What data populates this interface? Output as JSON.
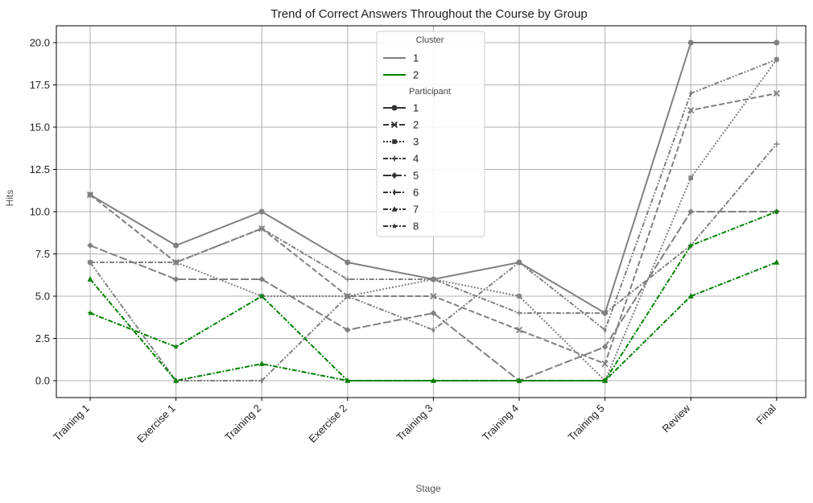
{
  "chart_data": {
    "type": "line",
    "title": "Trend of Correct Answers Throughout the Course by Group",
    "xlabel": "Stage",
    "ylabel": "Hits",
    "categories": [
      "Training 1",
      "Exercise 1",
      "Training 2",
      "Exercise 2",
      "Training 3",
      "Training 4",
      "Training 5",
      "Review",
      "Final"
    ],
    "ylim": [
      -1,
      21
    ],
    "yticks": [
      "0.0",
      "2.5",
      "5.0",
      "7.5",
      "10.0",
      "12.5",
      "15.0",
      "17.5",
      "20.0"
    ],
    "grid": true,
    "legend_position": "top-center",
    "legend": {
      "hue_title": "Cluster",
      "hue_entries": [
        {
          "label": "1",
          "color": "#808080"
        },
        {
          "label": "2",
          "color": "#008000"
        }
      ],
      "style_title": "Participant",
      "style_entries": [
        "1",
        "2",
        "3",
        "4",
        "5",
        "6",
        "7",
        "8"
      ]
    },
    "colors": {
      "cluster_1": "#808080",
      "cluster_2": "#008000",
      "grid": "#b0b0b0"
    },
    "series": [
      {
        "cluster": "1",
        "participant": "1",
        "marker": "circle",
        "dash": "solid",
        "values": [
          11,
          8,
          10,
          7,
          6,
          7,
          4,
          20,
          20
        ]
      },
      {
        "cluster": "1",
        "participant": "2",
        "marker": "x",
        "dash": "dash",
        "values": [
          11,
          7,
          9,
          5,
          5,
          3,
          1,
          16,
          17
        ]
      },
      {
        "cluster": "1",
        "participant": "3",
        "marker": "square",
        "dash": "dot",
        "values": [
          7,
          7,
          5,
          5,
          6,
          5,
          0,
          12,
          19
        ]
      },
      {
        "cluster": "1",
        "participant": "4",
        "marker": "plus",
        "dash": "dashdot",
        "values": [
          7,
          7,
          9,
          6,
          6,
          4,
          4,
          8,
          14
        ]
      },
      {
        "cluster": "1",
        "participant": "5",
        "marker": "diamond",
        "dash": "longdash",
        "values": [
          8,
          6,
          6,
          3,
          4,
          0,
          2,
          10,
          10
        ]
      },
      {
        "cluster": "1",
        "participant": "6",
        "marker": "thin_diamond",
        "dash": "dashdotdot",
        "values": [
          7,
          0,
          0,
          5,
          3,
          7,
          3,
          17,
          19
        ]
      },
      {
        "cluster": "2",
        "participant": "7",
        "marker": "triangle",
        "dash": "dashdot",
        "values": [
          6,
          0,
          1,
          0,
          0,
          0,
          0,
          5,
          7
        ]
      },
      {
        "cluster": "2",
        "participant": "8",
        "marker": "star",
        "dash": "dashdot",
        "values": [
          4,
          2,
          5,
          0,
          0,
          0,
          0,
          8,
          10
        ]
      }
    ]
  }
}
